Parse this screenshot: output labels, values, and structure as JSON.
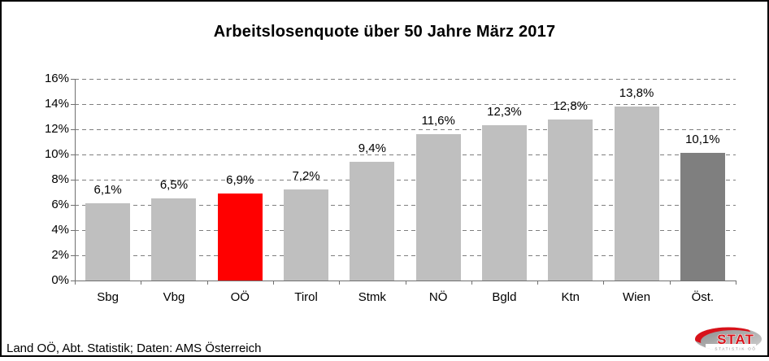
{
  "title": "Arbeitslosenquote über 50 Jahre März 2017",
  "footer": {
    "source_text": "Land OÖ, Abt. Statistik; Daten: AMS Österreich"
  },
  "logo": {
    "text": "STAT",
    "subtext": "STATISTIK OÖ"
  },
  "colors": {
    "default": "#BFBFBF",
    "highlight": "#FF0000",
    "total": "#7F7F7F",
    "gridline": "#7f7f7f",
    "axis": "#707070",
    "logo_red": "#D8121A",
    "logo_gray": "#9d9d9d"
  },
  "chart_data": {
    "type": "bar",
    "title": "Arbeitslosenquote über 50 Jahre März 2017",
    "categories": [
      "Sbg",
      "Vbg",
      "OÖ",
      "Tirol",
      "Stmk",
      "NÖ",
      "Bgld",
      "Ktn",
      "Wien",
      "Öst."
    ],
    "values": [
      6.1,
      6.5,
      6.9,
      7.2,
      9.4,
      11.6,
      12.3,
      12.8,
      13.8,
      10.1
    ],
    "value_labels": [
      "6,1%",
      "6,5%",
      "6,9%",
      "7,2%",
      "9,4%",
      "11,6%",
      "12,3%",
      "12,8%",
      "13,8%",
      "10,1%"
    ],
    "bar_color_keys": [
      "default",
      "default",
      "highlight",
      "default",
      "default",
      "default",
      "default",
      "default",
      "default",
      "total"
    ],
    "highlight_category": "OÖ",
    "total_category": "Öst.",
    "xlabel": "",
    "ylabel": "",
    "ylim": [
      0,
      16
    ],
    "ytick_step": 2,
    "ytick_labels": [
      "0%",
      "2%",
      "4%",
      "6%",
      "8%",
      "10%",
      "12%",
      "14%",
      "16%"
    ],
    "grid": "dashed-horizontal",
    "legend": "none"
  }
}
